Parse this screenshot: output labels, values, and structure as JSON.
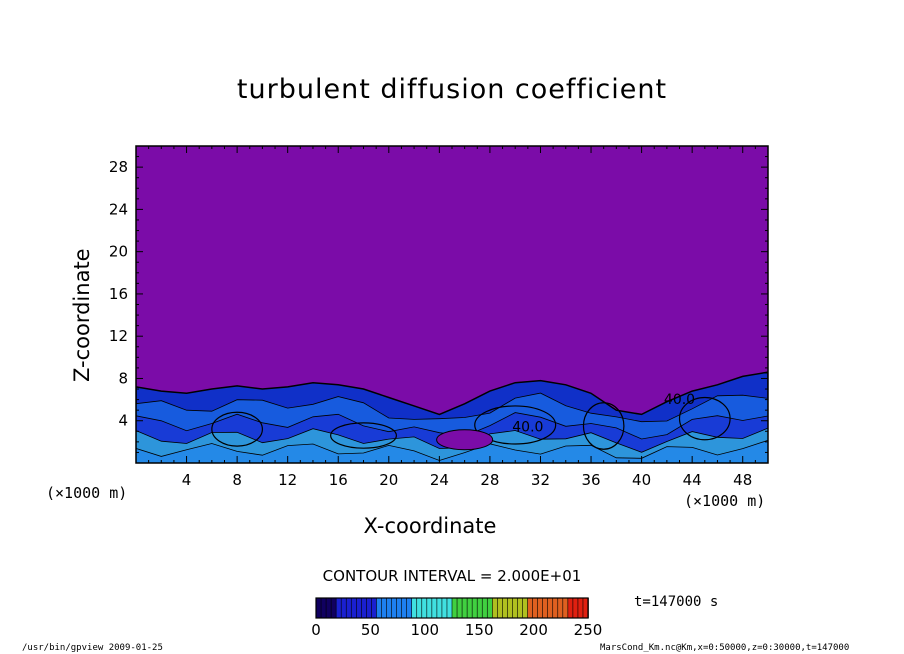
{
  "title": "turbulent diffusion coefficient",
  "chart_data": {
    "type": "heatmap",
    "title": "turbulent diffusion coefficient",
    "xlabel": "X-coordinate",
    "ylabel": "Z-coordinate",
    "x_unit": "(×1000 m)",
    "xlim": [
      0,
      50
    ],
    "ylim": [
      0,
      30
    ],
    "x_ticks": [
      4,
      8,
      12,
      16,
      20,
      24,
      28,
      32,
      36,
      40,
      44,
      48
    ],
    "y_ticks": [
      4,
      8,
      12,
      16,
      20,
      24,
      28
    ],
    "contour_labels": [
      {
        "text": "40.0",
        "x": 31.0,
        "z": 3.0
      },
      {
        "text": "40.0",
        "x": 43.0,
        "z": 5.6
      }
    ],
    "turbulent_top_profile": [
      {
        "x": 0,
        "z": 7.2
      },
      {
        "x": 2,
        "z": 6.8
      },
      {
        "x": 4,
        "z": 6.6
      },
      {
        "x": 6,
        "z": 7.0
      },
      {
        "x": 8,
        "z": 7.3
      },
      {
        "x": 10,
        "z": 7.0
      },
      {
        "x": 12,
        "z": 7.2
      },
      {
        "x": 14,
        "z": 7.6
      },
      {
        "x": 16,
        "z": 7.4
      },
      {
        "x": 18,
        "z": 7.0
      },
      {
        "x": 20,
        "z": 6.2
      },
      {
        "x": 22,
        "z": 5.4
      },
      {
        "x": 24,
        "z": 4.6
      },
      {
        "x": 26,
        "z": 5.6
      },
      {
        "x": 28,
        "z": 6.8
      },
      {
        "x": 30,
        "z": 7.6
      },
      {
        "x": 32,
        "z": 7.8
      },
      {
        "x": 34,
        "z": 7.4
      },
      {
        "x": 36,
        "z": 6.6
      },
      {
        "x": 38,
        "z": 5.0
      },
      {
        "x": 40,
        "z": 4.6
      },
      {
        "x": 42,
        "z": 5.8
      },
      {
        "x": 44,
        "z": 6.8
      },
      {
        "x": 46,
        "z": 7.4
      },
      {
        "x": 48,
        "z": 8.2
      },
      {
        "x": 50,
        "z": 8.6
      }
    ],
    "colorbar": {
      "min": 0,
      "max": 250,
      "ticks": [
        0,
        50,
        100,
        150,
        200,
        250
      ],
      "colors": [
        "#100060",
        "#1a20d0",
        "#1e80f0",
        "#40e0e0",
        "#40d040",
        "#b0c020",
        "#e06020",
        "#e02010"
      ]
    },
    "background_value_color": "#7b0ca8",
    "contour_interval": "CONTOUR INTERVAL = 2.000E+01",
    "time_label": "t=147000 s"
  },
  "labels": {
    "xunit_left": "(×1000 m)",
    "xunit_right": "(×1000 m)",
    "contour_interval": "CONTOUR INTERVAL = 2.000E+01",
    "time": "t=147000 s",
    "footer_left": "/usr/bin/gpview  2009-01-25",
    "footer_right": "MarsCond_Km.nc@Km,x=0:50000,z=0:30000,t=147000"
  }
}
